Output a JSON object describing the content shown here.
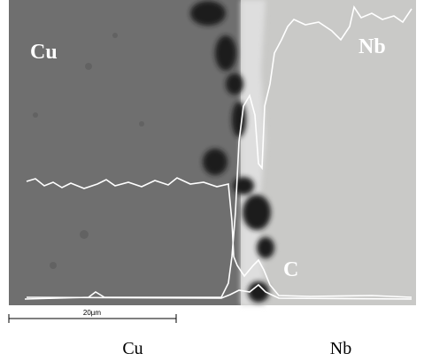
{
  "image": {
    "labels": {
      "left": "Cu",
      "right": "Nb",
      "carbon": "C"
    }
  },
  "scale_bar": {
    "label": "20µm"
  },
  "caption": {
    "left": "Cu",
    "right": "Nb"
  }
}
